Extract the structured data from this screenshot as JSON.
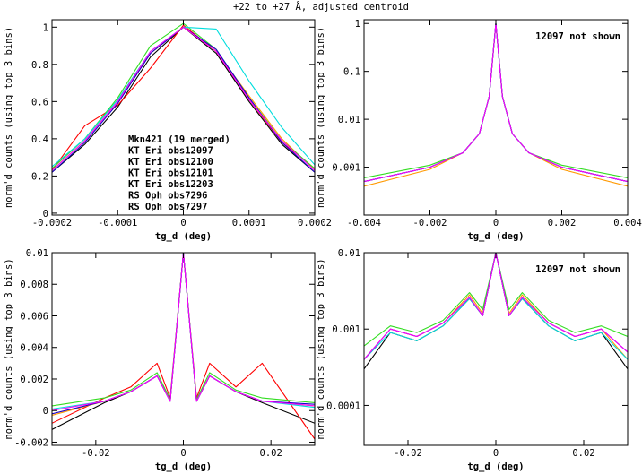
{
  "figure_title": "+22 to +27 Å, adjusted centroid",
  "colors": {
    "black": "#000000",
    "red": "#ff0000",
    "orange": "#ff9900",
    "green": "#33dd22",
    "cyan": "#00dddd",
    "blue": "#1a00cc",
    "magenta": "#ff00ff"
  },
  "chart_data": [
    {
      "type": "line",
      "panel": "top-left",
      "xlabel": "tg_d (deg)",
      "ylabel": "norm'd counts (using top 3 bins)",
      "xlim": [
        -0.0002,
        0.0002
      ],
      "ylim": [
        -0.01,
        1.04
      ],
      "xscale": "linear",
      "yscale": "linear",
      "xticks": [
        -0.0002,
        -0.0001,
        0,
        0.0001,
        0.0002
      ],
      "xticklabels": [
        "-0.0002",
        "-0.0001",
        "0",
        "0.0001",
        "0.0002"
      ],
      "yticks": [
        0,
        0.2,
        0.4,
        0.6,
        0.8,
        1
      ],
      "yticklabels": [
        "0",
        "0.2",
        "0.4",
        "0.6",
        "0.8",
        "1"
      ],
      "annotation": "",
      "legend_placement": "center-left",
      "series": [
        {
          "name": "Mkn421 (19 merged)",
          "color": "#000000",
          "x": [
            -0.0002,
            -0.00015,
            -0.0001,
            -5e-05,
            0,
            5e-05,
            0.0001,
            0.00015,
            0.0002
          ],
          "y": [
            0.22,
            0.37,
            0.57,
            0.84,
            1.0,
            0.86,
            0.6,
            0.37,
            0.22
          ]
        },
        {
          "name": "KT Eri obs12097",
          "color": "#ff0000",
          "x": [
            -0.0002,
            -0.00015,
            -0.0001,
            -5e-05,
            0,
            5e-05,
            0.0001,
            0.00015,
            0.0002
          ],
          "y": [
            0.23,
            0.47,
            0.58,
            0.78,
            1.01,
            0.87,
            0.61,
            0.38,
            0.24
          ]
        },
        {
          "name": "KT Eri obs12100",
          "color": "#ff9900",
          "x": [
            -0.0002,
            -0.00015,
            -0.0001,
            -5e-05,
            0,
            5e-05,
            0.0001,
            0.00015,
            0.0002
          ],
          "y": [
            0.23,
            0.39,
            0.6,
            0.86,
            1.0,
            0.87,
            0.63,
            0.4,
            0.23
          ]
        },
        {
          "name": "KT Eri obs12101",
          "color": "#33dd22",
          "x": [
            -0.0002,
            -0.00015,
            -0.0001,
            -5e-05,
            0,
            5e-05,
            0.0001,
            0.00015,
            0.0002
          ],
          "y": [
            0.24,
            0.4,
            0.62,
            0.9,
            1.02,
            0.88,
            0.62,
            0.39,
            0.24
          ]
        },
        {
          "name": "KT Eri obs12203",
          "color": "#00dddd",
          "x": [
            -0.0002,
            -0.00015,
            -0.0001,
            -5e-05,
            0,
            5e-05,
            0.0001,
            0.00015,
            0.0002
          ],
          "y": [
            0.25,
            0.4,
            0.61,
            0.87,
            1.0,
            0.99,
            0.71,
            0.46,
            0.26
          ]
        },
        {
          "name": "RS Oph obs7296",
          "color": "#1a00cc",
          "x": [
            -0.0002,
            -0.00015,
            -0.0001,
            -5e-05,
            0,
            5e-05,
            0.0001,
            0.00015,
            0.0002
          ],
          "y": [
            0.22,
            0.38,
            0.59,
            0.86,
            1.0,
            0.88,
            0.62,
            0.38,
            0.22
          ]
        },
        {
          "name": "RS Oph obs7297",
          "color": "#ff00ff",
          "x": [
            -0.0002,
            -0.00015,
            -0.0001,
            -5e-05,
            0,
            5e-05,
            0.0001,
            0.00015,
            0.0002
          ],
          "y": [
            0.23,
            0.39,
            0.6,
            0.87,
            1.0,
            0.87,
            0.61,
            0.39,
            0.23
          ]
        }
      ]
    },
    {
      "type": "line",
      "panel": "top-right",
      "xlabel": "tg_d (deg)",
      "ylabel": "norm'd counts (using top 3 bins)",
      "xlim": [
        -0.004,
        0.004
      ],
      "ylim": [
        0.0001,
        1.2
      ],
      "xscale": "linear",
      "yscale": "log",
      "xticks": [
        -0.004,
        -0.002,
        0,
        0.002,
        0.004
      ],
      "xticklabels": [
        "-0.004",
        "-0.002",
        "0",
        "0.002",
        "0.004"
      ],
      "yticks": [
        0.001,
        0.01,
        0.1,
        1
      ],
      "yticklabels": [
        "0.001",
        "0.01",
        "0.1",
        "1"
      ],
      "annotation": "12097 not shown",
      "series": [
        {
          "name": "Mkn421 (19 merged)",
          "color": "#000000",
          "x": [
            -0.004,
            -0.002,
            -0.001,
            -0.0005,
            -0.0002,
            0,
            0.0002,
            0.0005,
            0.001,
            0.002,
            0.004
          ],
          "y": [
            0.0005,
            0.001,
            0.002,
            0.005,
            0.03,
            1.0,
            0.03,
            0.005,
            0.002,
            0.001,
            0.0005
          ]
        },
        {
          "name": "KT Eri obs12100",
          "color": "#ff9900",
          "x": [
            -0.004,
            -0.002,
            -0.001,
            -0.0005,
            -0.0002,
            0,
            0.0002,
            0.0005,
            0.001,
            0.002,
            0.004
          ],
          "y": [
            0.0004,
            0.0009,
            0.002,
            0.005,
            0.03,
            1.0,
            0.03,
            0.005,
            0.002,
            0.0009,
            0.0004
          ]
        },
        {
          "name": "KT Eri obs12101",
          "color": "#33dd22",
          "x": [
            -0.004,
            -0.002,
            -0.001,
            -0.0005,
            -0.0002,
            0,
            0.0002,
            0.0005,
            0.001,
            0.002,
            0.004
          ],
          "y": [
            0.0006,
            0.0011,
            0.002,
            0.005,
            0.03,
            1.0,
            0.03,
            0.005,
            0.002,
            0.0011,
            0.0006
          ]
        },
        {
          "name": "KT Eri obs12203",
          "color": "#00dddd",
          "x": [
            -0.004,
            -0.002,
            -0.001,
            -0.0005,
            -0.0002,
            0,
            0.0002,
            0.0005,
            0.001,
            0.002,
            0.004
          ],
          "y": [
            0.0005,
            0.001,
            0.002,
            0.005,
            0.03,
            1.0,
            0.03,
            0.005,
            0.002,
            0.001,
            0.0005
          ]
        },
        {
          "name": "RS Oph obs7296",
          "color": "#1a00cc",
          "x": [
            -0.004,
            -0.002,
            -0.001,
            -0.0005,
            -0.0002,
            0,
            0.0002,
            0.0005,
            0.001,
            0.002,
            0.004
          ],
          "y": [
            0.0005,
            0.001,
            0.002,
            0.005,
            0.03,
            1.0,
            0.03,
            0.005,
            0.002,
            0.001,
            0.0005
          ]
        },
        {
          "name": "RS Oph obs7297",
          "color": "#ff00ff",
          "x": [
            -0.004,
            -0.002,
            -0.001,
            -0.0005,
            -0.0002,
            0,
            0.0002,
            0.0005,
            0.001,
            0.002,
            0.004
          ],
          "y": [
            0.0005,
            0.001,
            0.002,
            0.005,
            0.03,
            1.0,
            0.03,
            0.005,
            0.002,
            0.001,
            0.0005
          ]
        }
      ]
    },
    {
      "type": "line",
      "panel": "bottom-left",
      "xlabel": "tg_d (deg)",
      "ylabel": "norm'd counts (using top 3 bins)",
      "xlim": [
        -0.03,
        0.03
      ],
      "ylim": [
        -0.0022,
        0.01
      ],
      "xscale": "linear",
      "yscale": "linear",
      "xticks": [
        -0.02,
        0,
        0.02
      ],
      "xticklabels": [
        "-0.02",
        "0",
        "0.02"
      ],
      "yticks": [
        -0.002,
        0,
        0.002,
        0.004,
        0.006,
        0.008,
        0.01
      ],
      "yticklabels": [
        "-0.002",
        "0",
        "0.002",
        "0.004",
        "0.006",
        "0.008",
        "0.01"
      ],
      "annotation": "",
      "series": [
        {
          "name": "Mkn421 (19 merged)",
          "color": "#000000",
          "x": [
            -0.03,
            -0.018,
            -0.012,
            -0.006,
            -0.003,
            0,
            0.003,
            0.006,
            0.012,
            0.018,
            0.03
          ],
          "y": [
            -0.0012,
            0.0005,
            0.0012,
            0.0022,
            0.0006,
            0.0105,
            0.0006,
            0.0022,
            0.0012,
            0.0005,
            -0.0008
          ]
        },
        {
          "name": "KT Eri obs12097",
          "color": "#ff0000",
          "x": [
            -0.03,
            -0.018,
            -0.012,
            -0.006,
            -0.003,
            0,
            0.003,
            0.006,
            0.012,
            0.018,
            0.03
          ],
          "y": [
            -0.0008,
            0.0008,
            0.0015,
            0.003,
            0.0008,
            0.0105,
            0.0008,
            0.003,
            0.0015,
            0.003,
            -0.0018
          ]
        },
        {
          "name": "KT Eri obs12100",
          "color": "#ff9900",
          "x": [
            -0.03,
            -0.018,
            -0.012,
            -0.006,
            -0.003,
            0,
            0.003,
            0.006,
            0.012,
            0.018,
            0.03
          ],
          "y": [
            -0.0003,
            0.0006,
            0.0012,
            0.0022,
            0.0006,
            0.0105,
            0.0006,
            0.0022,
            0.0012,
            0.0006,
            0.0003
          ]
        },
        {
          "name": "KT Eri obs12101",
          "color": "#33dd22",
          "x": [
            -0.03,
            -0.018,
            -0.012,
            -0.006,
            -0.003,
            0,
            0.003,
            0.006,
            0.012,
            0.018,
            0.03
          ],
          "y": [
            0.0003,
            0.0008,
            0.0013,
            0.0024,
            0.0007,
            0.0105,
            0.0007,
            0.0024,
            0.0013,
            0.0008,
            0.0005
          ]
        },
        {
          "name": "KT Eri obs12203",
          "color": "#00dddd",
          "x": [
            -0.03,
            -0.018,
            -0.012,
            -0.006,
            -0.003,
            0,
            0.003,
            0.006,
            0.012,
            0.018,
            0.03
          ],
          "y": [
            0.0001,
            0.0006,
            0.0012,
            0.0022,
            0.0006,
            0.0105,
            0.0006,
            0.0022,
            0.0012,
            0.0006,
            0.0002
          ]
        },
        {
          "name": "RS Oph obs7296",
          "color": "#1a00cc",
          "x": [
            -0.03,
            -0.018,
            -0.012,
            -0.006,
            -0.003,
            0,
            0.003,
            0.006,
            0.012,
            0.018,
            0.03
          ],
          "y": [
            -0.0002,
            0.0006,
            0.0012,
            0.0022,
            0.0006,
            0.0105,
            0.0006,
            0.0022,
            0.0012,
            0.0006,
            0.0004
          ]
        },
        {
          "name": "RS Oph obs7297",
          "color": "#ff00ff",
          "x": [
            -0.03,
            -0.018,
            -0.012,
            -0.006,
            -0.003,
            0,
            0.003,
            0.006,
            0.012,
            0.018,
            0.03
          ],
          "y": [
            0.0,
            0.0006,
            0.0012,
            0.0022,
            0.0006,
            0.0105,
            0.0006,
            0.0022,
            0.0012,
            0.0006,
            0.0003
          ]
        }
      ]
    },
    {
      "type": "line",
      "panel": "bottom-right",
      "xlabel": "tg_d (deg)",
      "ylabel": "norm'd counts (using top 3 bins)",
      "xlim": [
        -0.03,
        0.03
      ],
      "ylim": [
        3e-05,
        0.01
      ],
      "xscale": "linear",
      "yscale": "log",
      "xticks": [
        -0.02,
        0,
        0.02
      ],
      "xticklabels": [
        "-0.02",
        "0",
        "0.02"
      ],
      "yticks": [
        0.0001,
        0.001,
        0.01
      ],
      "yticklabels": [
        "0.0001",
        "0.001",
        "0.01"
      ],
      "annotation": "12097 not shown",
      "series": [
        {
          "name": "Mkn421 (19 merged)",
          "color": "#000000",
          "x": [
            -0.03,
            -0.024,
            -0.018,
            -0.012,
            -0.006,
            -0.003,
            0,
            0.003,
            0.006,
            0.012,
            0.018,
            0.024,
            0.03
          ],
          "y": [
            0.0003,
            0.0009,
            0.0007,
            0.0011,
            0.0025,
            0.0015,
            0.01,
            0.0015,
            0.0025,
            0.0011,
            0.0007,
            0.0009,
            0.0003
          ]
        },
        {
          "name": "KT Eri obs12100",
          "color": "#ff9900",
          "x": [
            -0.03,
            -0.024,
            -0.018,
            -0.012,
            -0.006,
            -0.003,
            0,
            0.003,
            0.006,
            0.012,
            0.018,
            0.024,
            0.03
          ],
          "y": [
            0.0004,
            0.001,
            0.0008,
            0.0012,
            0.0028,
            0.0016,
            0.01,
            0.0016,
            0.0028,
            0.0012,
            0.0008,
            0.001,
            0.0004
          ]
        },
        {
          "name": "KT Eri obs12101",
          "color": "#33dd22",
          "x": [
            -0.03,
            -0.024,
            -0.018,
            -0.012,
            -0.006,
            -0.003,
            0,
            0.003,
            0.006,
            0.012,
            0.018,
            0.024,
            0.03
          ],
          "y": [
            0.0006,
            0.0011,
            0.0009,
            0.0013,
            0.003,
            0.0018,
            0.01,
            0.0018,
            0.003,
            0.0013,
            0.0009,
            0.0011,
            0.0008
          ]
        },
        {
          "name": "KT Eri obs12203",
          "color": "#00dddd",
          "x": [
            -0.03,
            -0.024,
            -0.018,
            -0.012,
            -0.006,
            -0.003,
            0,
            0.003,
            0.006,
            0.012,
            0.018,
            0.024,
            0.03
          ],
          "y": [
            0.0004,
            0.0009,
            0.0007,
            0.0011,
            0.0025,
            0.0015,
            0.01,
            0.0015,
            0.0025,
            0.0011,
            0.0007,
            0.0009,
            0.0004
          ]
        },
        {
          "name": "RS Oph obs7296",
          "color": "#1a00cc",
          "x": [
            -0.03,
            -0.024,
            -0.018,
            -0.012,
            -0.006,
            -0.003,
            0,
            0.003,
            0.006,
            0.012,
            0.018,
            0.024,
            0.03
          ],
          "y": [
            0.0004,
            0.001,
            0.0008,
            0.0012,
            0.0026,
            0.0015,
            0.01,
            0.0015,
            0.0026,
            0.0012,
            0.0008,
            0.001,
            0.0005
          ]
        },
        {
          "name": "RS Oph obs7297",
          "color": "#ff00ff",
          "x": [
            -0.03,
            -0.024,
            -0.018,
            -0.012,
            -0.006,
            -0.003,
            0,
            0.003,
            0.006,
            0.012,
            0.018,
            0.024,
            0.03
          ],
          "y": [
            0.0004,
            0.001,
            0.0008,
            0.0012,
            0.0026,
            0.0015,
            0.01,
            0.0015,
            0.0026,
            0.0012,
            0.0008,
            0.001,
            0.0005
          ]
        }
      ]
    }
  ]
}
